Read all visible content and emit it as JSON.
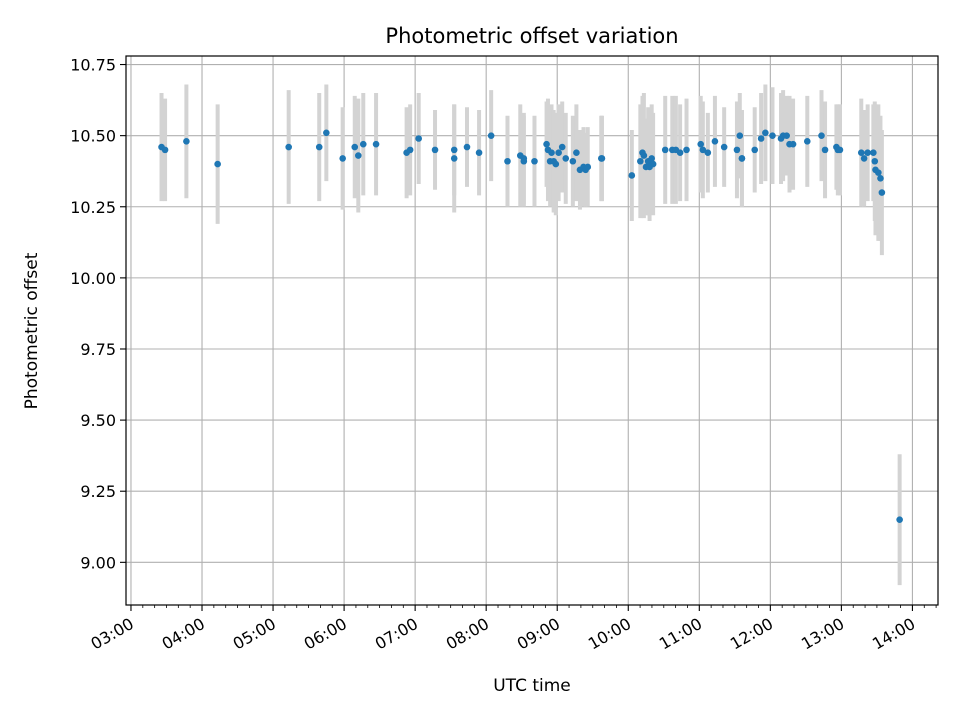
{
  "chart_data": {
    "type": "scatter",
    "title": "Photometric offset variation",
    "xlabel": "UTC time",
    "ylabel": "Photometric offset",
    "x_axis": "time (hours, UTC)",
    "xlim": [
      2.93,
      14.36
    ],
    "ylim": [
      8.85,
      10.78
    ],
    "grid": true,
    "x_ticks": [
      {
        "value": 3,
        "label": "03:00"
      },
      {
        "value": 4,
        "label": "04:00"
      },
      {
        "value": 5,
        "label": "05:00"
      },
      {
        "value": 6,
        "label": "06:00"
      },
      {
        "value": 7,
        "label": "07:00"
      },
      {
        "value": 8,
        "label": "08:00"
      },
      {
        "value": 9,
        "label": "09:00"
      },
      {
        "value": 10,
        "label": "10:00"
      },
      {
        "value": 11,
        "label": "11:00"
      },
      {
        "value": 12,
        "label": "12:00"
      },
      {
        "value": 13,
        "label": "13:00"
      },
      {
        "value": 14,
        "label": "14:00"
      }
    ],
    "y_ticks": [
      {
        "value": 9.0,
        "label": "9.00"
      },
      {
        "value": 9.25,
        "label": "9.25"
      },
      {
        "value": 9.5,
        "label": "9.50"
      },
      {
        "value": 9.75,
        "label": "9.75"
      },
      {
        "value": 10.0,
        "label": "10.00"
      },
      {
        "value": 10.25,
        "label": "10.25"
      },
      {
        "value": 10.5,
        "label": "10.50"
      },
      {
        "value": 10.75,
        "label": "10.75"
      }
    ],
    "colors": {
      "points": "#1f77b4",
      "error_bars": "#d3d3d3",
      "grid": "#b0b0b0"
    },
    "series": [
      {
        "x": [
          3.43,
          3.48,
          3.78,
          4.22,
          5.22,
          5.65,
          5.75,
          5.98,
          6.15,
          6.2,
          6.27,
          6.45,
          6.88,
          6.93,
          7.05,
          7.28,
          7.55,
          7.55,
          7.73,
          7.9,
          8.07,
          8.3,
          8.48,
          8.53,
          8.53,
          8.68,
          8.85,
          8.87,
          8.9,
          8.92,
          8.95,
          8.98,
          9.02,
          9.07,
          9.12,
          9.22,
          9.27,
          9.32,
          9.37,
          9.4,
          9.43,
          9.62,
          9.63,
          10.05,
          10.17,
          10.2,
          10.22,
          10.25,
          10.28,
          10.3,
          10.33,
          10.35,
          10.52,
          10.62,
          10.67,
          10.73,
          10.82,
          11.02,
          11.05,
          11.12,
          11.22,
          11.35,
          11.53,
          11.57,
          11.6,
          11.6,
          11.78,
          11.87,
          11.93,
          12.03,
          12.15,
          12.18,
          12.23,
          12.27,
          12.32,
          12.52,
          12.72,
          12.77,
          12.93,
          12.95,
          12.98,
          13.28,
          13.32,
          13.37,
          13.45,
          13.47,
          13.48,
          13.52,
          13.55,
          13.57,
          13.82
        ],
        "y": [
          10.46,
          10.45,
          10.48,
          10.4,
          10.46,
          10.46,
          10.51,
          10.42,
          10.46,
          10.43,
          10.47,
          10.47,
          10.44,
          10.45,
          10.49,
          10.45,
          10.42,
          10.45,
          10.46,
          10.44,
          10.5,
          10.41,
          10.43,
          10.42,
          10.41,
          10.41,
          10.47,
          10.45,
          10.41,
          10.44,
          10.41,
          10.4,
          10.44,
          10.46,
          10.42,
          10.41,
          10.44,
          10.38,
          10.39,
          10.38,
          10.39,
          10.42,
          10.42,
          10.36,
          10.41,
          10.44,
          10.43,
          10.39,
          10.41,
          10.39,
          10.42,
          10.4,
          10.45,
          10.45,
          10.45,
          10.44,
          10.45,
          10.47,
          10.45,
          10.44,
          10.48,
          10.46,
          10.45,
          10.5,
          10.42,
          10.42,
          10.45,
          10.49,
          10.51,
          10.5,
          10.49,
          10.5,
          10.5,
          10.47,
          10.47,
          10.48,
          10.5,
          10.45,
          10.46,
          10.45,
          10.45,
          10.44,
          10.42,
          10.44,
          10.44,
          10.41,
          10.38,
          10.37,
          10.35,
          10.3,
          9.15
        ],
        "yerr": [
          0.19,
          0.18,
          0.2,
          0.21,
          0.2,
          0.19,
          0.17,
          0.18,
          0.18,
          0.2,
          0.18,
          0.18,
          0.16,
          0.16,
          0.16,
          0.14,
          0.19,
          0.16,
          0.14,
          0.15,
          0.16,
          0.16,
          0.18,
          0.16,
          0.16,
          0.16,
          0.15,
          0.18,
          0.16,
          0.17,
          0.18,
          0.18,
          0.17,
          0.16,
          0.16,
          0.16,
          0.17,
          0.14,
          0.14,
          0.13,
          0.14,
          0.15,
          0.15,
          0.16,
          0.2,
          0.2,
          0.22,
          0.17,
          0.19,
          0.19,
          0.19,
          0.18,
          0.19,
          0.19,
          0.19,
          0.17,
          0.18,
          0.17,
          0.17,
          0.14,
          0.16,
          0.14,
          0.17,
          0.15,
          0.17,
          0.17,
          0.15,
          0.16,
          0.17,
          0.17,
          0.16,
          0.16,
          0.14,
          0.17,
          0.16,
          0.16,
          0.16,
          0.17,
          0.15,
          0.16,
          0.16,
          0.19,
          0.17,
          0.17,
          0.17,
          0.21,
          0.23,
          0.24,
          0.22,
          0.22,
          0.23
        ]
      }
    ]
  }
}
